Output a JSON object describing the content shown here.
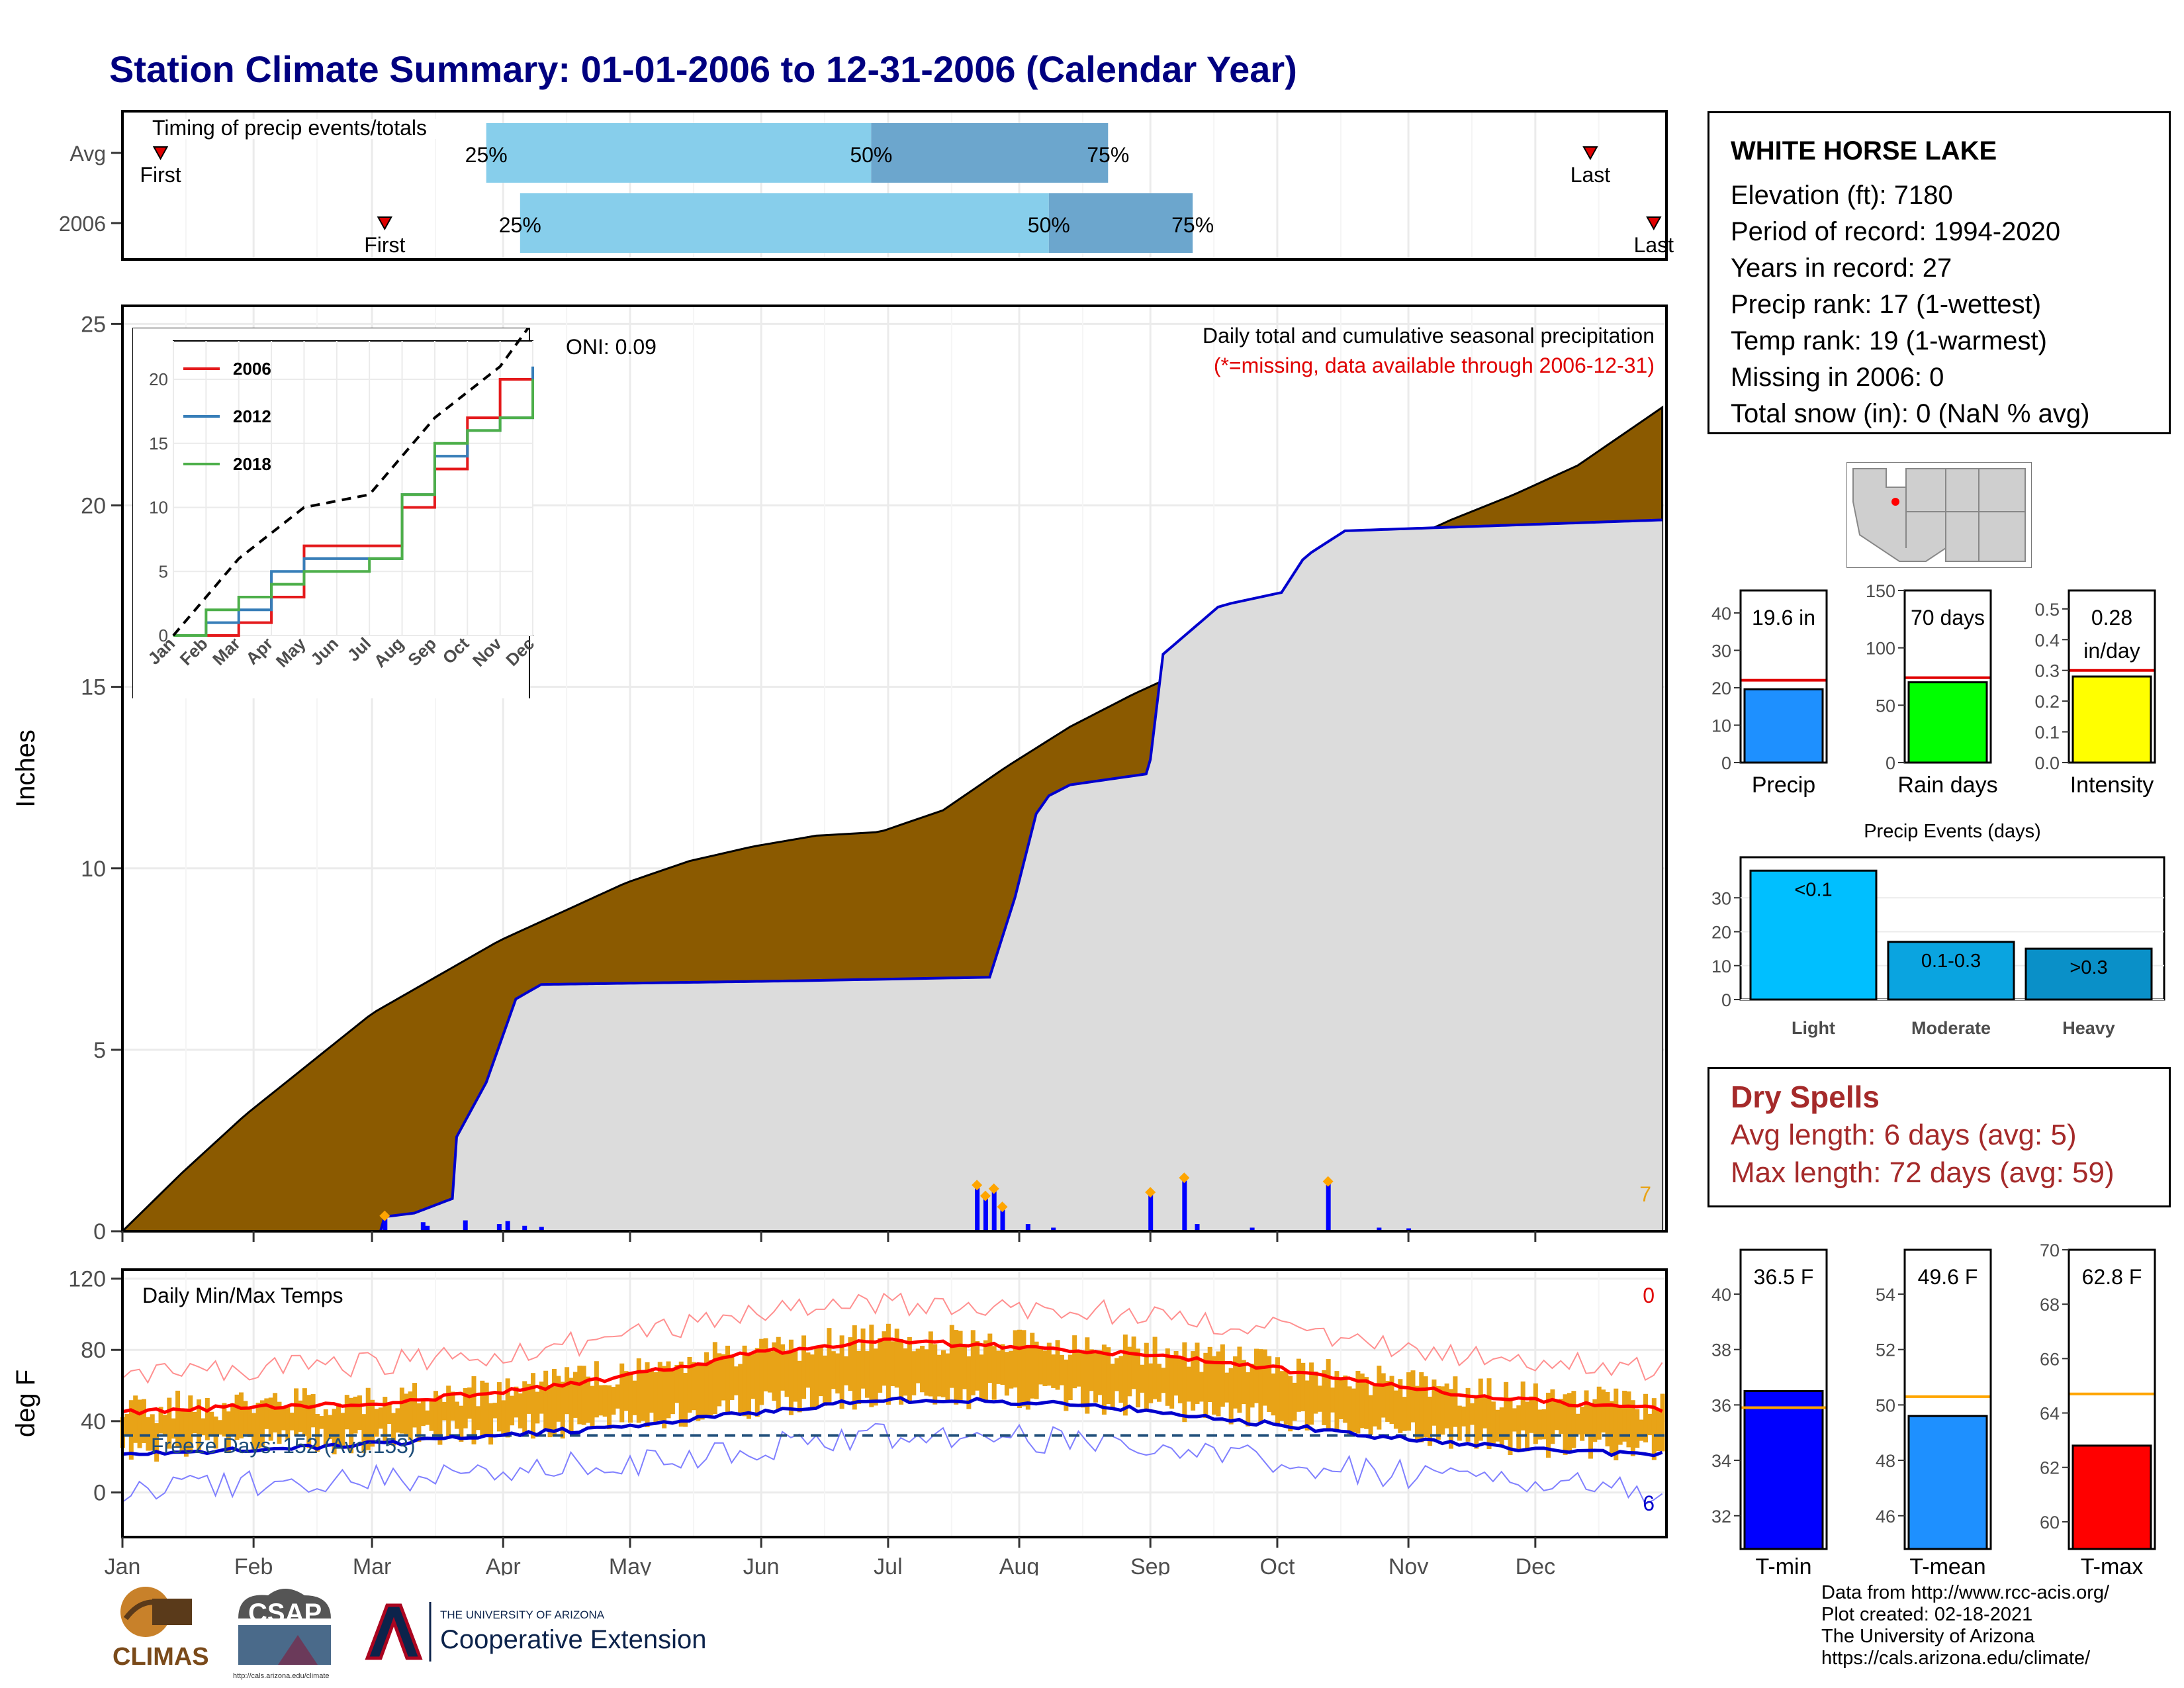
{
  "page_title": "Station Climate Summary: 01-01-2006 to 12-31-2006 (Calendar Year)",
  "months": [
    "Jan",
    "Feb",
    "Mar",
    "Apr",
    "May",
    "Jun",
    "Jul",
    "Aug",
    "Sep",
    "Oct",
    "Nov",
    "Dec"
  ],
  "station": {
    "name": "WHITE HORSE LAKE",
    "lines": [
      "Elevation (ft): 7180",
      "Period of record: 1994-2020",
      "Years in record: 27",
      "Precip rank: 17 (1-wettest)",
      "Temp rank: 19 (1-warmest)",
      "Missing in 2006: 0",
      "Total snow (in): 0 (NaN % avg)"
    ]
  },
  "dry_spells": {
    "title": "Dry Spells",
    "avg": "Avg length: 6 days (avg: 5)",
    "max": "Max length: 72 days (avg: 59)"
  },
  "credits": [
    "Data from http://www.rcc-acis.org/",
    "Plot created: 02-18-2021",
    "The University of Arizona",
    "https://cals.arizona.edu/climate/"
  ],
  "logos": {
    "climas": "CLIMAS",
    "csap": "CSAP",
    "csap_url": "http://cals.arizona.edu/climate",
    "ua_small": "THE UNIVERSITY OF ARIZONA",
    "ua_big": "Cooperative Extension"
  },
  "colors": {
    "cumulative": "#8B5A00",
    "normal": "#DCDCDC",
    "normal_line": "#0000CD",
    "daily_bar": "#0000FF",
    "max_temp": "#FF0000",
    "min_temp": "#0000CD",
    "range": "#E8A317",
    "timing_light": "#87CEEB",
    "timing_dark": "#6CA6CD"
  },
  "chart_data": [
    {
      "type": "bar",
      "title": "Timing of precip events/totals",
      "rows": [
        "Avg",
        "2006"
      ],
      "series": [
        {
          "name": "Avg",
          "first": "Jan 10",
          "last": "Dec 14",
          "p25": "Mar 28",
          "p50": "Jun 27",
          "p75": "Aug 22"
        },
        {
          "name": "2006",
          "first": "Mar 4",
          "last": "Dec 29",
          "p25": "Apr 5",
          "p50": "Aug 8",
          "p75": "Sep 11"
        }
      ],
      "labels": {
        "first": "First",
        "last": "Last",
        "p25": "25%",
        "p50": "50%",
        "p75": "75%"
      }
    },
    {
      "type": "area",
      "ylabel": "Inches",
      "ylim": [
        0,
        25.5
      ],
      "yticks": [
        0,
        5,
        10,
        15,
        20,
        25
      ],
      "title": "Daily total and cumulative seasonal precipitation",
      "subtitle": "(*=missing, data available through 2006-12-31)",
      "oni": "ONI: 0.09",
      "corner_count": "7",
      "avg_cumulative": {
        "x": [
          1,
          15,
          30,
          45,
          60,
          75,
          90,
          105,
          120,
          135,
          150,
          165,
          180,
          195,
          210,
          225,
          240,
          255,
          270,
          285,
          300,
          315,
          330,
          345,
          365
        ],
        "values": [
          0,
          1.6,
          3.2,
          4.6,
          6.0,
          7.0,
          8.0,
          8.8,
          9.6,
          10.2,
          10.6,
          10.9,
          11.0,
          11.6,
          12.8,
          13.9,
          14.8,
          15.6,
          16.4,
          17.4,
          18.8,
          19.6,
          20.3,
          21.1,
          22.7
        ]
      },
      "cumulative_2006": {
        "x": [
          1,
          62,
          63,
          70,
          79,
          80,
          87,
          94,
          100,
          160,
          206,
          212,
          217,
          220,
          225,
          243,
          244,
          247,
          260,
          263,
          275,
          280,
          282,
          290,
          365
        ],
        "values": [
          0,
          0,
          0.4,
          0.5,
          0.9,
          2.6,
          4.1,
          6.4,
          6.8,
          6.9,
          7.0,
          9.2,
          11.5,
          12.0,
          12.3,
          12.6,
          13.0,
          15.9,
          17.2,
          17.3,
          17.6,
          18.5,
          18.7,
          19.3,
          19.6
        ]
      },
      "daily": [
        {
          "day": 63,
          "v": 0.35
        },
        {
          "day": 72,
          "v": 0.25
        },
        {
          "day": 73,
          "v": 0.15
        },
        {
          "day": 82,
          "v": 0.3
        },
        {
          "day": 90,
          "v": 0.2
        },
        {
          "day": 92,
          "v": 0.28
        },
        {
          "day": 96,
          "v": 0.15
        },
        {
          "day": 100,
          "v": 0.12
        },
        {
          "day": 203,
          "v": 1.2
        },
        {
          "day": 205,
          "v": 0.9
        },
        {
          "day": 207,
          "v": 1.1
        },
        {
          "day": 209,
          "v": 0.6
        },
        {
          "day": 215,
          "v": 0.2
        },
        {
          "day": 221,
          "v": 0.1
        },
        {
          "day": 244,
          "v": 1.0
        },
        {
          "day": 252,
          "v": 1.4
        },
        {
          "day": 255,
          "v": 0.2
        },
        {
          "day": 268,
          "v": 0.1
        },
        {
          "day": 286,
          "v": 1.3
        },
        {
          "day": 298,
          "v": 0.1
        },
        {
          "day": 305,
          "v": 0.08
        }
      ],
      "inset": {
        "ylim": [
          0,
          23
        ],
        "yticks": [
          0,
          5,
          10,
          15,
          20
        ],
        "series": [
          {
            "name": "2006",
            "values": [
              0,
              0,
              1,
              3,
              7,
              7,
              7,
              10,
              13,
              17,
              20,
              20.5
            ]
          },
          {
            "name": "2012",
            "values": [
              0,
              1,
              2,
              5,
              6,
              6,
              6,
              11,
              14,
              16,
              17,
              21
            ]
          },
          {
            "name": "2018",
            "values": [
              0,
              2,
              3,
              4,
              5,
              5,
              6,
              11,
              15,
              16,
              17,
              20
            ]
          }
        ],
        "avg": [
          0,
          3,
          6,
          8,
          10,
          10.5,
          11,
          14,
          17,
          19,
          21,
          24.5
        ]
      }
    },
    {
      "type": "line",
      "title": "Daily Min/Max Temps",
      "ylabel": "deg F",
      "ylim": [
        -25,
        125
      ],
      "yticks": [
        0,
        40,
        80,
        120
      ],
      "freeze_label": "Freeze Days: 152 (Avg:153)",
      "freeze_line": 32,
      "max_count": "0",
      "min_count": "6",
      "avg_max": {
        "x": [
          1,
          30,
          60,
          90,
          120,
          150,
          180,
          210,
          240,
          270,
          300,
          330,
          365
        ],
        "values": [
          45,
          48,
          50,
          56,
          65,
          78,
          85,
          82,
          78,
          71,
          60,
          52,
          47
        ]
      },
      "avg_min": {
        "x": [
          1,
          30,
          60,
          90,
          120,
          150,
          180,
          210,
          240,
          270,
          300,
          330,
          365
        ],
        "values": [
          21,
          24,
          27,
          32,
          37,
          45,
          52,
          51,
          47,
          39,
          31,
          25,
          21
        ]
      }
    },
    {
      "type": "bar",
      "panels": [
        {
          "category": "Precip",
          "value": 19.6,
          "avg": 22.0,
          "label": "19.6 in",
          "yticks": [
            0,
            10,
            20,
            30,
            40
          ],
          "ylim": [
            0,
            46
          ],
          "color": "#1E90FF"
        },
        {
          "category": "Rain days",
          "value": 70,
          "avg": 74,
          "label": "70 days",
          "yticks": [
            0,
            50,
            100,
            150
          ],
          "ylim": [
            0,
            150
          ],
          "color": "#00FF00"
        },
        {
          "category": "Intensity",
          "value": 0.28,
          "avg": 0.3,
          "label": "0.28",
          "label2": "in/day",
          "yticks": [
            0.0,
            0.1,
            0.2,
            0.3,
            0.4,
            0.5
          ],
          "ylim": [
            0,
            0.56
          ],
          "color": "#FFFF00"
        }
      ]
    },
    {
      "type": "bar",
      "title": "Precip Events (days)",
      "categories": [
        "Light",
        "Moderate",
        "Heavy"
      ],
      "values": [
        38,
        17,
        15
      ],
      "labels": [
        "<0.1",
        "0.1-0.3",
        ">0.3"
      ],
      "yticks": [
        0,
        10,
        20,
        30
      ],
      "ylim": [
        0,
        40
      ]
    },
    {
      "type": "bar",
      "panels": [
        {
          "category": "T-min",
          "value": 36.5,
          "avg": 35.9,
          "label": "36.5 F",
          "yticks": [
            32,
            34,
            36,
            38,
            40
          ],
          "ylim": [
            30.8,
            41.6
          ],
          "color": "#0000FF"
        },
        {
          "category": "T-mean",
          "value": 49.6,
          "avg": 50.3,
          "label": "49.6 F",
          "yticks": [
            46,
            48,
            50,
            52,
            54
          ],
          "ylim": [
            44.8,
            55.6
          ],
          "color": "#1E90FF"
        },
        {
          "category": "T-max",
          "value": 62.8,
          "avg": 64.7,
          "label": "62.8 F",
          "yticks": [
            60,
            62,
            64,
            66,
            68,
            70
          ],
          "ylim": [
            59.0,
            70.0
          ],
          "color": "#FF0000"
        }
      ]
    }
  ]
}
